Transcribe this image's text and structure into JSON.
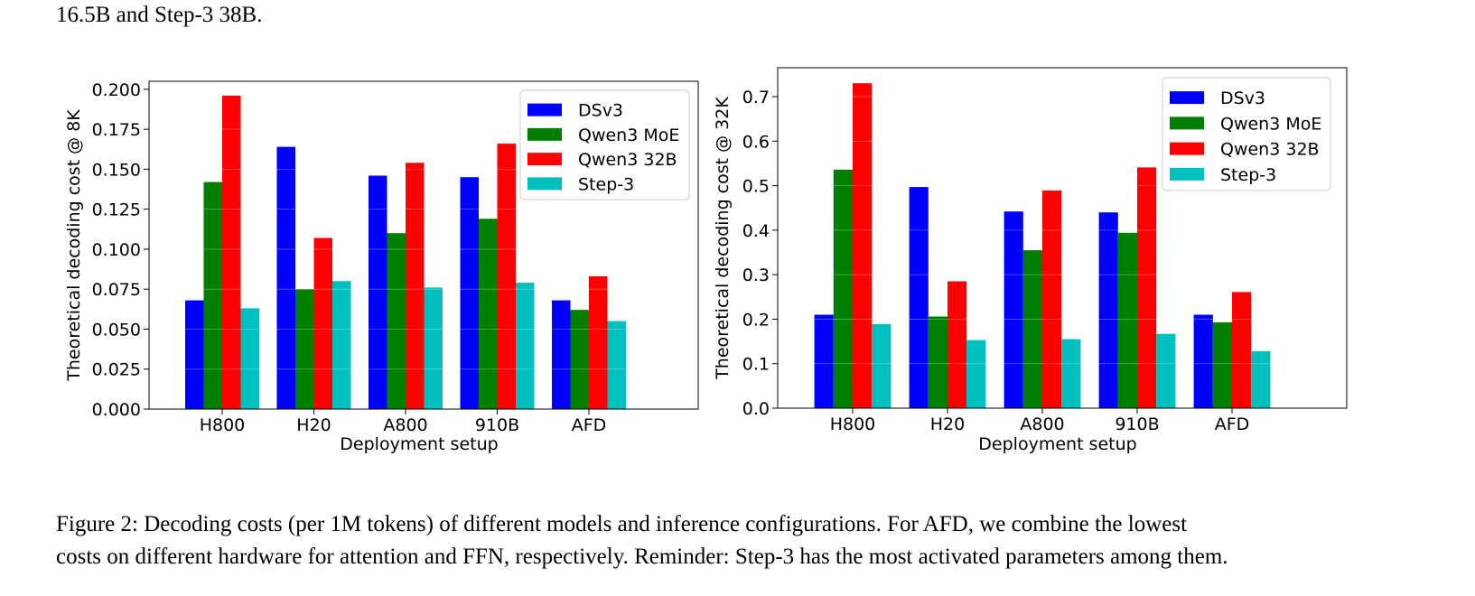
{
  "top_text": "16.5B and Step-3 38B.",
  "caption": {
    "line1": "Figure 2: Decoding costs (per 1M tokens) of different models and inference configurations. For AFD, we combine the lowest",
    "line2": "costs on different hardware for attention and FFN, respectively. Reminder: Step-3 has the most activated parameters among them."
  },
  "chart_data": [
    {
      "type": "bar",
      "title": "",
      "xlabel": "Deployment setup",
      "ylabel": "Theoretical decoding cost @ 8K",
      "categories": [
        "H800",
        "H20",
        "A800",
        "910B",
        "AFD"
      ],
      "ylim": [
        0,
        0.205
      ],
      "yticks": [
        0.0,
        0.025,
        0.05,
        0.075,
        0.1,
        0.125,
        0.15,
        0.175,
        0.2
      ],
      "ytick_labels": [
        "0.000",
        "0.025",
        "0.050",
        "0.075",
        "0.100",
        "0.125",
        "0.150",
        "0.175",
        "0.200"
      ],
      "grid": true,
      "legend_position": "top-right",
      "series": [
        {
          "name": "DSv3",
          "color": "#0000ff",
          "values": [
            0.068,
            0.164,
            0.146,
            0.145,
            0.068
          ]
        },
        {
          "name": "Qwen3 MoE",
          "color": "#008000",
          "values": [
            0.142,
            0.075,
            0.11,
            0.119,
            0.062
          ]
        },
        {
          "name": "Qwen3 32B",
          "color": "#ff0000",
          "values": [
            0.196,
            0.107,
            0.154,
            0.166,
            0.083
          ]
        },
        {
          "name": "Step-3",
          "color": "#00bfbf",
          "values": [
            0.063,
            0.08,
            0.076,
            0.079,
            0.055
          ]
        }
      ]
    },
    {
      "type": "bar",
      "title": "",
      "xlabel": "Deployment setup",
      "ylabel": "Theoretical decoding cost @ 32K",
      "categories": [
        "H800",
        "H20",
        "A800",
        "910B",
        "AFD"
      ],
      "ylim": [
        0,
        0.765
      ],
      "yticks": [
        0.0,
        0.1,
        0.2,
        0.3,
        0.4,
        0.5,
        0.6,
        0.7
      ],
      "ytick_labels": [
        "0.0",
        "0.1",
        "0.2",
        "0.3",
        "0.4",
        "0.5",
        "0.6",
        "0.7"
      ],
      "grid": true,
      "legend_position": "top-right",
      "series": [
        {
          "name": "DSv3",
          "color": "#0000ff",
          "values": [
            0.21,
            0.497,
            0.442,
            0.44,
            0.21
          ]
        },
        {
          "name": "Qwen3 MoE",
          "color": "#008000",
          "values": [
            0.536,
            0.206,
            0.355,
            0.394,
            0.193
          ]
        },
        {
          "name": "Qwen3 32B",
          "color": "#ff0000",
          "values": [
            0.73,
            0.285,
            0.489,
            0.541,
            0.261
          ]
        },
        {
          "name": "Step-3",
          "color": "#00bfbf",
          "values": [
            0.189,
            0.153,
            0.155,
            0.167,
            0.128
          ]
        }
      ]
    }
  ]
}
